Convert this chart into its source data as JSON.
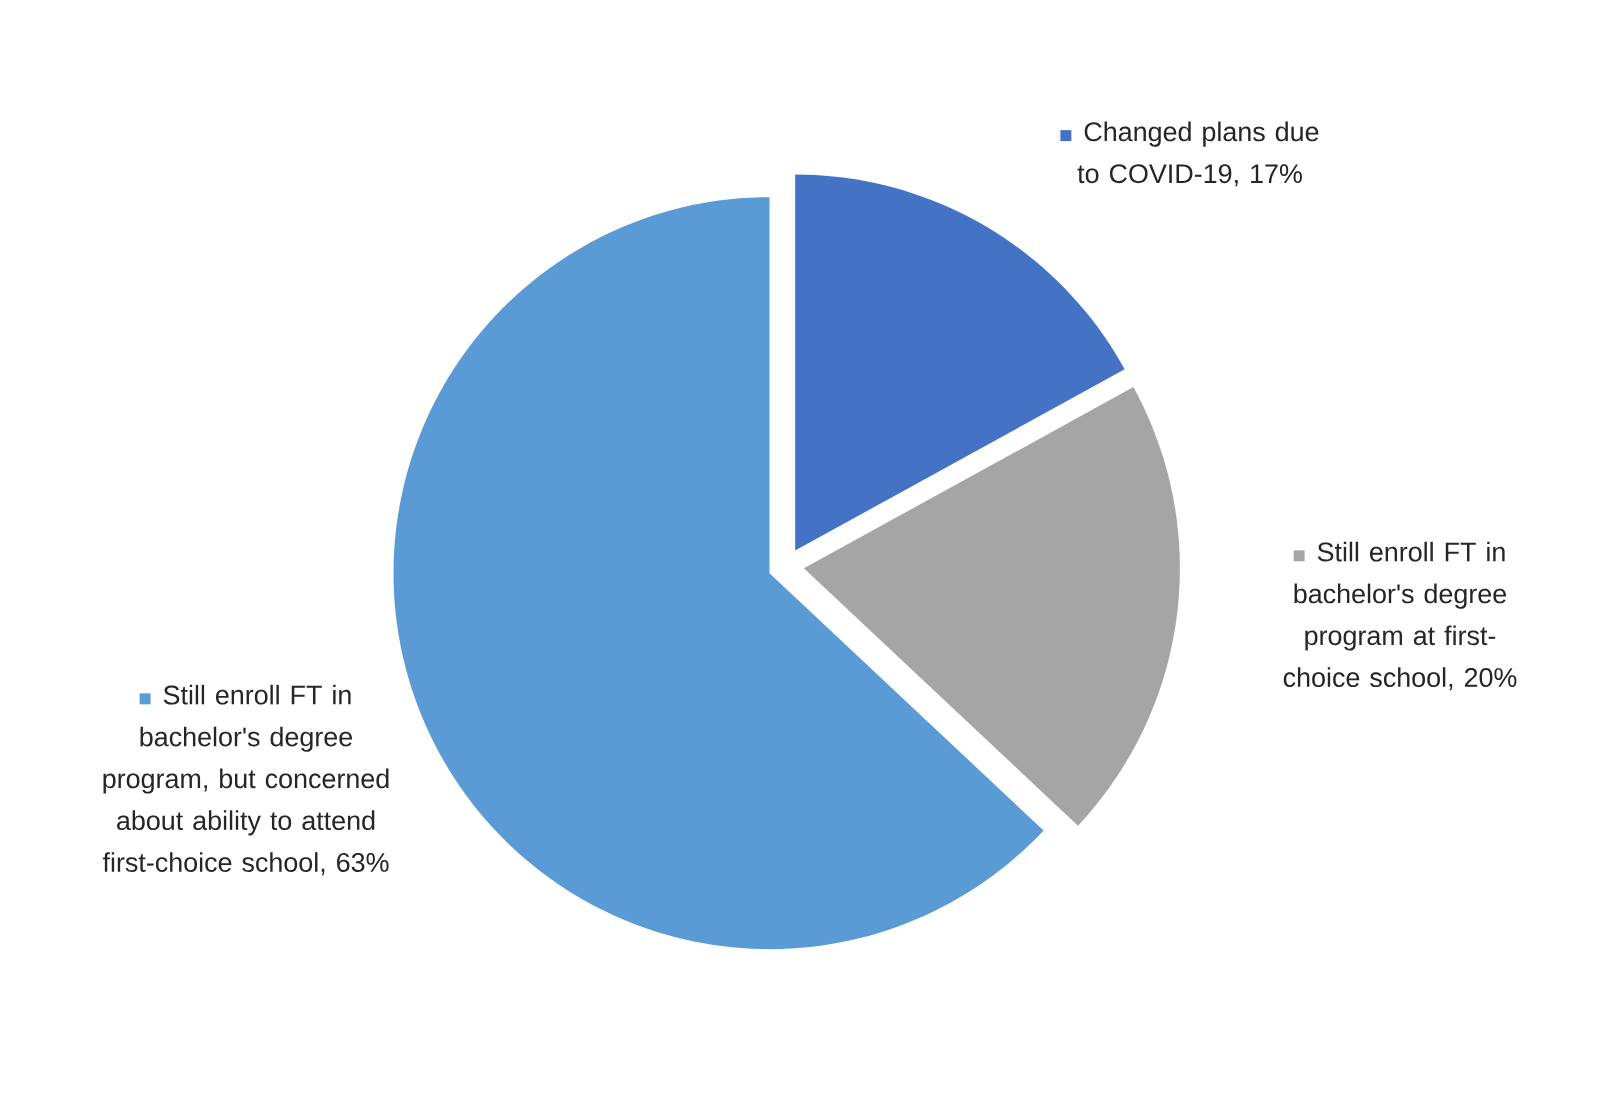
{
  "chart_data": {
    "type": "pie",
    "categories": [
      "Changed plans due to COVID-19",
      "Still enroll FT in bachelor's degree program at first-choice school",
      "Still enroll FT in bachelor's degree program, but concerned about ability to attend first-choice school"
    ],
    "values": [
      17,
      20,
      63
    ],
    "colors": [
      "#4472c4",
      "#a5a5a5",
      "#5b9bd5"
    ],
    "value_labels": [
      ", 17%",
      ", 20%",
      ", 63%"
    ],
    "legend": "right"
  }
}
